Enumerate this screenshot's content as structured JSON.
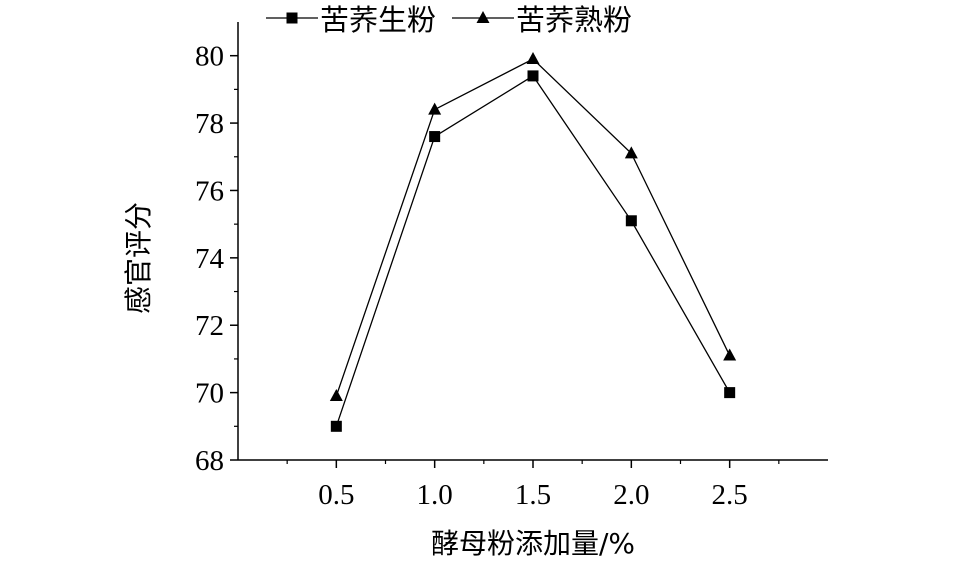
{
  "chart_data": {
    "type": "line",
    "title": "",
    "xlabel": "酵母粉添加量/%",
    "ylabel": "感官评分",
    "x": [
      0.5,
      1.0,
      1.5,
      2.0,
      2.5
    ],
    "x_tick_labels": [
      "0.5",
      "1.0",
      "1.5",
      "2.0",
      "2.5"
    ],
    "xlim": [
      0.0,
      3.0
    ],
    "ylim": [
      68,
      81
    ],
    "y_ticks": [
      68,
      70,
      72,
      74,
      76,
      78,
      80
    ],
    "y_tick_labels": [
      "68",
      "70",
      "72",
      "74",
      "76",
      "78",
      "80"
    ],
    "grid": false,
    "legend_position": "top",
    "series": [
      {
        "name": "苦荞生粉",
        "marker": "square",
        "color": "#000000",
        "values": [
          69.0,
          77.6,
          79.4,
          75.1,
          70.0
        ]
      },
      {
        "name": "苦荞熟粉",
        "marker": "triangle",
        "color": "#000000",
        "values": [
          69.9,
          78.4,
          79.9,
          77.1,
          71.1
        ]
      }
    ]
  }
}
